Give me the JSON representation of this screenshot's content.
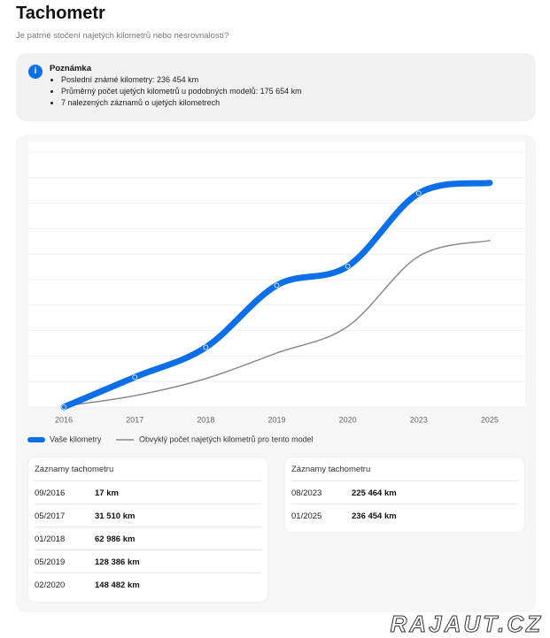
{
  "header": {
    "title": "Tachometr",
    "subtitle": "Je patrné stočení najetých kilometrů nebo nesrovnalostí?"
  },
  "note": {
    "icon": "i",
    "title": "Poznámka",
    "items": [
      "Poslední známé kilometry: 236 454 km",
      "Průměrný počet ujetých kilometrů u podobných modelů: 175 654 km",
      "7 nalezených záznamů o ujetých kilometrech"
    ]
  },
  "chart_data": {
    "type": "line",
    "categories": [
      "2016",
      "2017",
      "2018",
      "2019",
      "2020",
      "2023",
      "2025"
    ],
    "series": [
      {
        "name": "Vaše kilometry",
        "color": "#0a6fe8",
        "values": [
          17,
          31510,
          62986,
          128386,
          148482,
          225464,
          236454
        ]
      },
      {
        "name": "Obvyklý počet najetých kilometrů pro tento model",
        "color": "#8a8a8a",
        "values": [
          1000,
          12000,
          30000,
          57000,
          85000,
          159000,
          175654
        ]
      }
    ],
    "ylim": [
      0,
      280000
    ],
    "grid": true
  },
  "tables": [
    {
      "title": "Záznamy tachometru",
      "rows": [
        [
          "09/2016",
          "17 km"
        ],
        [
          "05/2017",
          "31 510 km"
        ],
        [
          "01/2018",
          "62 986 km"
        ],
        [
          "05/2019",
          "128 386 km"
        ],
        [
          "02/2020",
          "148 482 km"
        ]
      ]
    },
    {
      "title": "Záznamy tachometru",
      "rows": [
        [
          "08/2023",
          "225 464 km"
        ],
        [
          "01/2025",
          "236 454 km"
        ]
      ]
    }
  ],
  "watermark": "RAJAUT.CZ"
}
